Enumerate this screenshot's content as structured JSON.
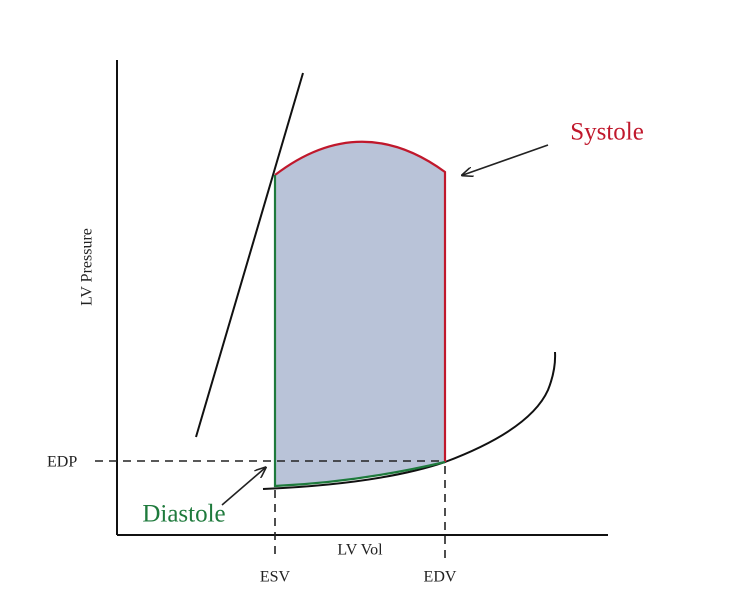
{
  "axes": {
    "y_label": "LV Pressure",
    "x_label": "LV Vol"
  },
  "markers": {
    "edp": "EDP",
    "esv": "ESV",
    "edv": "EDV"
  },
  "annotations": {
    "systole": "Systole",
    "diastole": "Diastole"
  }
}
